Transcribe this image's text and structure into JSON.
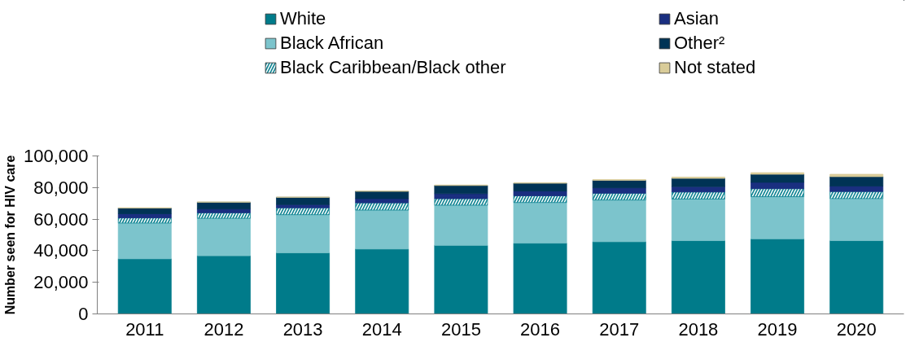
{
  "chart_data": {
    "type": "bar",
    "stacked": true,
    "ylabel": "Number seen for HIV care",
    "categories": [
      "2011",
      "2012",
      "2013",
      "2014",
      "2015",
      "2016",
      "2017",
      "2018",
      "2019",
      "2020"
    ],
    "ylim": [
      0,
      100000
    ],
    "yticks": [
      {
        "value": 0,
        "label": "0"
      },
      {
        "value": 20000,
        "label": "20,000"
      },
      {
        "value": 40000,
        "label": "40,000"
      },
      {
        "value": 60000,
        "label": "60,000"
      },
      {
        "value": 80000,
        "label": "80,000"
      },
      {
        "value": 100000,
        "label": "100,000"
      }
    ],
    "legend": "top",
    "grid": false,
    "series": [
      {
        "name": "White",
        "color": "#007b8a",
        "values": [
          34900,
          36800,
          38700,
          41100,
          43400,
          44800,
          45700,
          46400,
          47500,
          46400
        ]
      },
      {
        "name": "Black African",
        "color": "#7cc4cc",
        "values": [
          22600,
          23700,
          24100,
          24600,
          25400,
          25700,
          26400,
          26300,
          26700,
          26600
        ]
      },
      {
        "name": "Black Caribbean/Black other",
        "color": "#138694",
        "values": [
          3300,
          3500,
          4400,
          4600,
          4200,
          4300,
          4300,
          4500,
          5100,
          4500
        ]
      },
      {
        "name": "Asian",
        "color": "#1a2f80",
        "values": [
          2600,
          2400,
          2000,
          2700,
          3100,
          3000,
          3400,
          3400,
          4000,
          3400
        ]
      },
      {
        "name": "Other²",
        "color": "#003355",
        "values": [
          3600,
          4300,
          4600,
          4600,
          5200,
          4900,
          4800,
          5200,
          5100,
          6000
        ]
      },
      {
        "name": "Not stated",
        "color": "#d9cc99",
        "values": [
          200,
          200,
          200,
          200,
          300,
          300,
          400,
          800,
          1000,
          1500
        ]
      }
    ]
  }
}
